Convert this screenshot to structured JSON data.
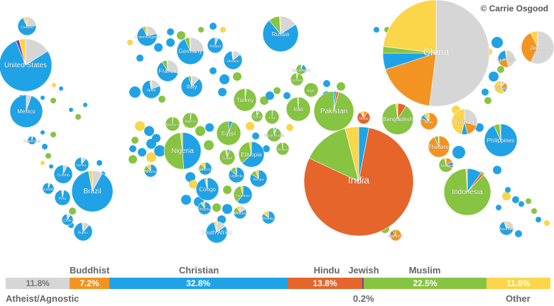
{
  "credit": "© Carrie Osgood",
  "colors": {
    "atheist": "#d6d6d6",
    "buddhist": "#f39422",
    "christian": "#1fa3e6",
    "hindu": "#e5652a",
    "jewish": "#7b3fa0",
    "muslim": "#86c441",
    "other": "#fbd54a"
  },
  "legend": {
    "segments": [
      {
        "key": "atheist",
        "value": "11.8%",
        "share": 11.8
      },
      {
        "key": "buddhist",
        "value": "7.2%",
        "share": 7.2
      },
      {
        "key": "christian",
        "value": "32.8%",
        "share": 32.8
      },
      {
        "key": "hindu",
        "value": "13.8%",
        "share": 13.8
      },
      {
        "key": "jewish",
        "value": "",
        "share": 0.2
      },
      {
        "key": "muslim",
        "value": "22.5%",
        "share": 22.5
      },
      {
        "key": "other",
        "value": "11.8%",
        "share": 11.8
      }
    ],
    "labels": {
      "buddhist": "Buddhist",
      "christian": "Christian",
      "hindu": "Hindu",
      "jewish": "Jewish",
      "muslim": "Muslim",
      "atheist": "Atheist/Agnostic",
      "jewish_value": "0.2%",
      "other": "Other"
    }
  },
  "countries": [
    {
      "name": "China",
      "s": {
        "atheist": 52,
        "buddhist": 18,
        "christian": 5,
        "muslim": 2,
        "other": 23
      }
    },
    {
      "name": "India",
      "s": {
        "hindu": 79,
        "muslim": 14,
        "christian": 3,
        "other": 4
      }
    },
    {
      "name": "United States",
      "s": {
        "christian": 78,
        "atheist": 16,
        "jewish": 2,
        "other": 4
      }
    },
    {
      "name": "Indonesia",
      "s": {
        "muslim": 87,
        "christian": 10,
        "hindu": 2,
        "other": 1
      }
    },
    {
      "name": "Brazil",
      "s": {
        "christian": 89,
        "atheist": 8,
        "other": 3
      }
    },
    {
      "name": "Pakistan",
      "s": {
        "muslim": 96,
        "hindu": 2,
        "christian": 2
      }
    },
    {
      "name": "Nigeria",
      "s": {
        "christian": 49,
        "muslim": 49,
        "other": 2
      }
    },
    {
      "name": "Bangladesh",
      "s": {
        "muslim": 89,
        "hindu": 9,
        "other": 2
      }
    },
    {
      "name": "Russia",
      "s": {
        "christian": 73,
        "atheist": 16,
        "muslim": 10,
        "other": 1
      }
    },
    {
      "name": "Japan",
      "s": {
        "buddhist": 36,
        "atheist": 57,
        "other": 7
      }
    },
    {
      "name": "Mexico",
      "s": {
        "christian": 95,
        "atheist": 5
      }
    },
    {
      "name": "Philippines",
      "s": {
        "christian": 93,
        "muslim": 6,
        "other": 1
      }
    },
    {
      "name": "Vietnam",
      "s": {
        "atheist": 30,
        "buddhist": 16,
        "christian": 8,
        "other": 46
      }
    },
    {
      "name": "Ethiopia",
      "s": {
        "christian": 63,
        "muslim": 34,
        "other": 3
      }
    },
    {
      "name": "Egypt",
      "s": {
        "muslim": 95,
        "christian": 5
      }
    },
    {
      "name": "Germany",
      "s": {
        "christian": 68,
        "atheist": 25,
        "muslim": 6,
        "other": 1
      }
    },
    {
      "name": "Iran",
      "s": {
        "muslim": 99,
        "other": 1
      }
    },
    {
      "name": "Turkey",
      "s": {
        "muslim": 98,
        "atheist": 2
      }
    },
    {
      "name": "Thailand",
      "s": {
        "buddhist": 93,
        "muslim": 6,
        "other": 1
      }
    },
    {
      "name": "Congo",
      "s": {
        "christian": 96,
        "muslim": 2,
        "other": 2
      }
    },
    {
      "name": "France",
      "s": {
        "christian": 63,
        "atheist": 28,
        "muslim": 8,
        "other": 1
      }
    },
    {
      "name": "United Kingdom",
      "s": {
        "christian": 72,
        "atheist": 21,
        "muslim": 4,
        "other": 3
      }
    },
    {
      "name": "Italy",
      "s": {
        "christian": 83,
        "atheist": 12,
        "muslim": 4,
        "other": 1
      }
    },
    {
      "name": "South Africa",
      "s": {
        "christian": 81,
        "atheist": 15,
        "other": 4
      }
    },
    {
      "name": "Myan",
      "s": {
        "buddhist": 80,
        "christian": 8,
        "muslim": 4,
        "other": 8
      }
    },
    {
      "name": "South Korea",
      "s": {
        "christian": 29,
        "atheist": 46,
        "buddhist": 23,
        "other": 2
      }
    },
    {
      "name": "Colomb",
      "s": {
        "christian": 93,
        "atheist": 7
      }
    },
    {
      "name": "Spain",
      "s": {
        "christian": 78,
        "atheist": 19,
        "muslim": 2,
        "other": 1
      }
    },
    {
      "name": "Ukraine",
      "s": {
        "christian": 84,
        "atheist": 14,
        "muslim": 1,
        "other": 1
      }
    },
    {
      "name": "Tanzania",
      "s": {
        "christian": 61,
        "muslim": 35,
        "other": 4
      }
    },
    {
      "name": "Kenya",
      "s": {
        "christian": 84,
        "muslim": 10,
        "other": 6
      }
    },
    {
      "name": "Argen.",
      "s": {
        "christian": 86,
        "atheist": 12,
        "other": 2
      }
    },
    {
      "name": "Poland",
      "s": {
        "christian": 94,
        "atheist": 6
      }
    },
    {
      "name": "Algeria",
      "s": {
        "muslim": 98,
        "christian": 2
      }
    },
    {
      "name": "Canada",
      "s": {
        "christian": 69,
        "atheist": 24,
        "muslim": 2,
        "other": 5
      }
    },
    {
      "name": "Uganda",
      "s": {
        "christian": 86,
        "muslim": 12,
        "other": 2
      }
    },
    {
      "name": "Morocco",
      "s": {
        "muslim": 99,
        "christian": 1
      }
    },
    {
      "name": "Sudan",
      "s": {
        "muslim": 91,
        "christian": 5,
        "other": 4
      }
    },
    {
      "name": "Iraq",
      "s": {
        "muslim": 99,
        "christian": 1
      }
    },
    {
      "name": "Afgh.",
      "s": {
        "muslim": 100
      }
    },
    {
      "name": "Peru",
      "s": {
        "christian": 95,
        "atheist": 3,
        "other": 2
      }
    },
    {
      "name": "Venez.",
      "s": {
        "christian": 89,
        "atheist": 10,
        "other": 1
      }
    },
    {
      "name": "Malay.",
      "s": {
        "muslim": 64,
        "buddhist": 17,
        "christian": 9,
        "hindu": 6,
        "other": 4
      }
    },
    {
      "name": "Uzbek",
      "s": {
        "muslim": 96,
        "christian": 3,
        "other": 1
      }
    },
    {
      "name": "Saudi Arabia",
      "s": {
        "muslim": 93,
        "christian": 4,
        "hindu": 2,
        "other": 1
      }
    },
    {
      "name": "Nepal",
      "s": {
        "hindu": 81,
        "buddhist": 10,
        "muslim": 4,
        "other": 5
      }
    },
    {
      "name": "Ghana",
      "s": {
        "christian": 74,
        "muslim": 16,
        "other": 10
      }
    },
    {
      "name": "Yemen",
      "s": {
        "muslim": 99,
        "other": 1
      }
    },
    {
      "name": "Mozam",
      "s": {
        "christian": 56,
        "muslim": 18,
        "atheist": 17,
        "other": 9
      }
    },
    {
      "name": "Taiwan",
      "s": {
        "buddhist": 21,
        "atheist": 13,
        "other": 60,
        "christian": 6
      }
    },
    {
      "name": "Australia",
      "s": {
        "christian": 67,
        "atheist": 24,
        "buddhist": 3,
        "other": 6
      }
    },
    {
      "name": "Syria",
      "s": {
        "muslim": 93,
        "christian": 5,
        "other": 2
      }
    },
    {
      "name": "Angola",
      "s": {
        "christian": 90,
        "other": 10
      }
    },
    {
      "name": "Sri Lanka",
      "s": {
        "buddhist": 69,
        "hindu": 14,
        "muslim": 10,
        "christian": 7
      }
    },
    {
      "name": "Madag.",
      "s": {
        "christian": 85,
        "other": 15
      }
    },
    {
      "name": "Cameroon",
      "s": {
        "christian": 70,
        "muslim": 18,
        "other": 12
      }
    },
    {
      "name": "Chile",
      "s": {
        "christian": 89,
        "atheist": 9,
        "other": 2
      }
    },
    {
      "name": "Ecuador",
      "s": {
        "christian": 94,
        "atheist": 6
      }
    },
    {
      "name": "Guatemala",
      "s": {
        "christian": 95,
        "atheist": 4,
        "other": 1
      }
    },
    {
      "name": "Kazakhstan",
      "s": {
        "muslim": 70,
        "christian": 25,
        "atheist": 5
      }
    }
  ]
}
